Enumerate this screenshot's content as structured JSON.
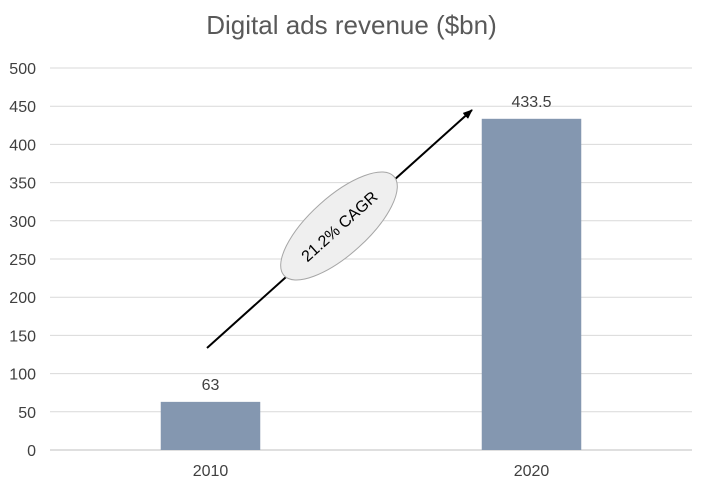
{
  "chart_data": {
    "type": "bar",
    "title": "Digital ads revenue ($bn)",
    "categories": [
      "2010",
      "2020"
    ],
    "values": [
      63,
      433.5
    ],
    "data_labels": [
      "63",
      "433.5"
    ],
    "ylim": [
      0,
      500
    ],
    "yticks": [
      0,
      50,
      100,
      150,
      200,
      250,
      300,
      350,
      400,
      450,
      500
    ],
    "grid": true,
    "legend": "none",
    "annotation": "21.2% CAGR",
    "colors": {
      "bar": "#8497b0",
      "grid": "#d9d9d9",
      "axis": "#bfbfbf",
      "arrow": "#000000",
      "annotation_fill": "#efefef",
      "annotation_stroke": "#a6a6a6"
    }
  }
}
